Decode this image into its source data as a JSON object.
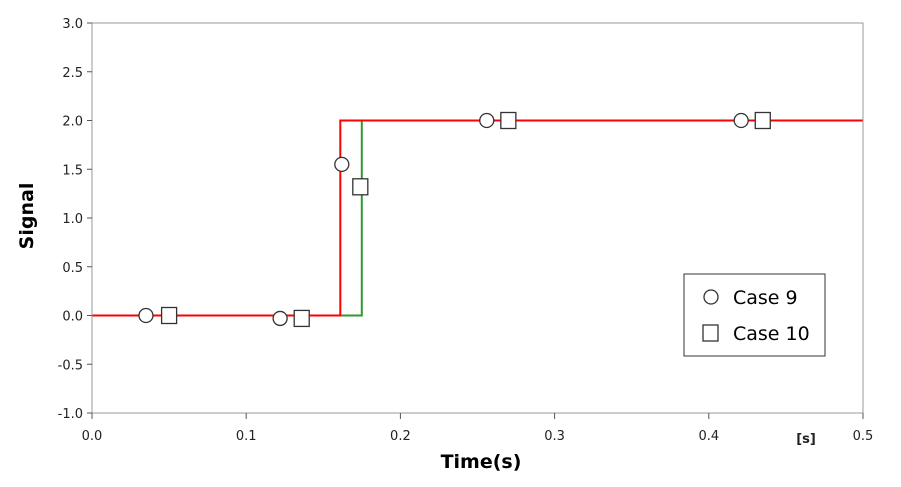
{
  "chart_data": {
    "type": "line",
    "xlabel": "Time(s)",
    "ylabel": "Signal",
    "x_unit": "[s]",
    "xlim": [
      0.0,
      0.5
    ],
    "ylim": [
      -1.0,
      3.0
    ],
    "xticks": [
      0.0,
      0.1,
      0.2,
      0.3,
      0.4,
      0.5
    ],
    "xtick_labels": [
      "0.0",
      "0.1",
      "0.2",
      "0.3",
      "0.4",
      "0.5"
    ],
    "yticks": [
      -1.0,
      -0.5,
      0.0,
      0.5,
      1.0,
      1.5,
      2.0,
      2.5,
      3.0
    ],
    "ytick_labels": [
      "-1.0",
      "-0.5",
      "0.0",
      "0.5",
      "1.0",
      "1.5",
      "2.0",
      "2.5",
      "3.0"
    ],
    "grid": false,
    "legend_position": "bottom-right",
    "series": [
      {
        "name": "Case 9",
        "marker": "circle",
        "color": "#ff0000",
        "x": [
          0.0,
          0.161,
          0.161,
          0.175,
          0.5
        ],
        "y": [
          0.0,
          0.0,
          2.0,
          2.0,
          2.0
        ],
        "marker_points": [
          {
            "x": 0.035,
            "y": 0.0
          },
          {
            "x": 0.122,
            "y": -0.03
          },
          {
            "x": 0.162,
            "y": 1.55
          },
          {
            "x": 0.256,
            "y": 2.0
          },
          {
            "x": 0.421,
            "y": 2.0
          }
        ]
      },
      {
        "name": "Case 10",
        "marker": "square",
        "color": "#2e9b2e",
        "x": [
          0.0,
          0.175,
          0.175,
          0.5
        ],
        "y": [
          0.0,
          0.0,
          2.0,
          2.0
        ],
        "marker_points": [
          {
            "x": 0.05,
            "y": 0.0
          },
          {
            "x": 0.136,
            "y": -0.03
          },
          {
            "x": 0.174,
            "y": 1.32
          },
          {
            "x": 0.27,
            "y": 2.0
          },
          {
            "x": 0.435,
            "y": 2.0
          }
        ]
      }
    ]
  }
}
